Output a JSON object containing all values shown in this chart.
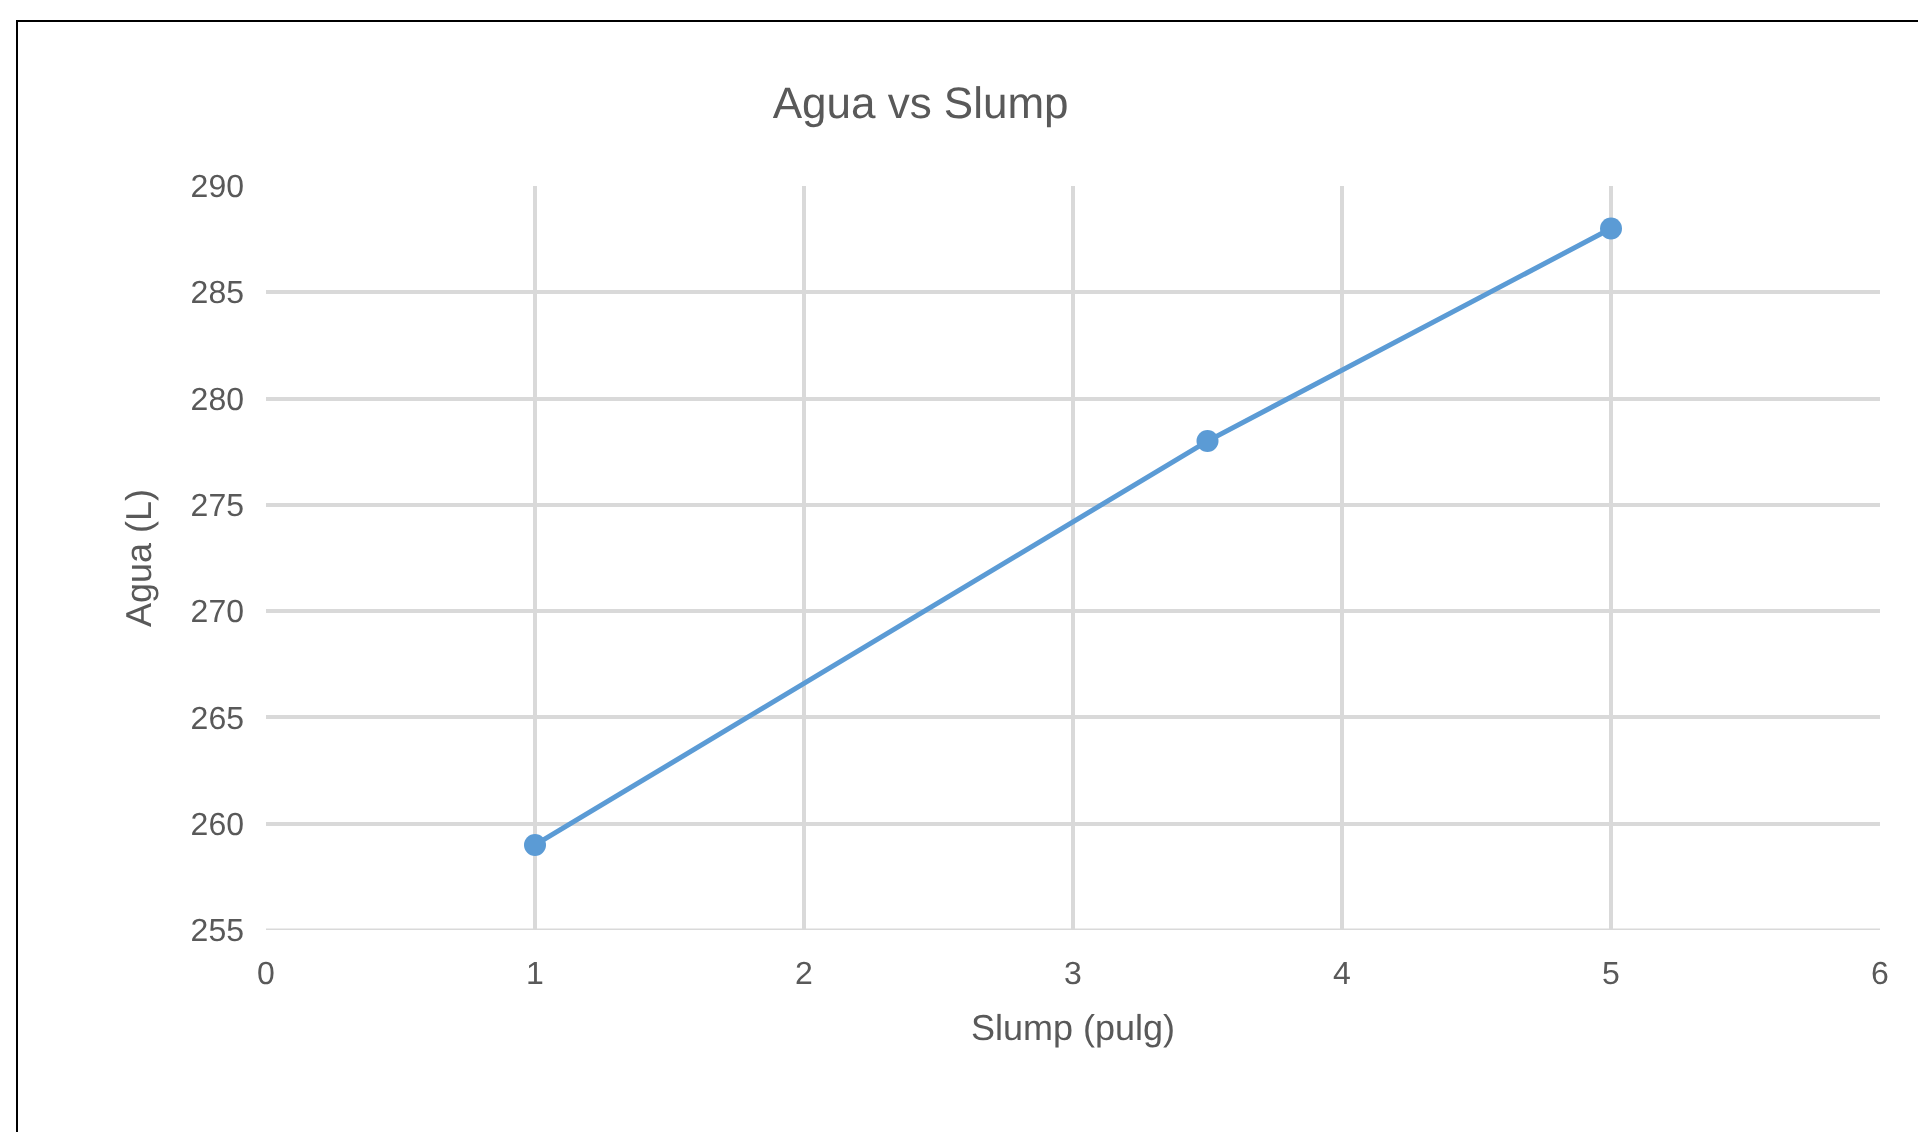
{
  "chart_data": {
    "type": "line",
    "title": "Agua vs Slump",
    "xlabel": "Slump (pulg)",
    "ylabel": "Agua (L)",
    "x": [
      1,
      3.5,
      5
    ],
    "series": [
      {
        "color": "#5b9bd5",
        "values": [
          259,
          278,
          288
        ]
      }
    ],
    "xlim": [
      0,
      6
    ],
    "xticks": [
      0,
      1,
      2,
      3,
      4,
      5,
      6
    ],
    "ylim": [
      255,
      290
    ],
    "yticks": [
      255,
      260,
      265,
      270,
      275,
      280,
      285,
      290
    ],
    "grid": true,
    "marker": "circle",
    "line_style": "solid"
  }
}
